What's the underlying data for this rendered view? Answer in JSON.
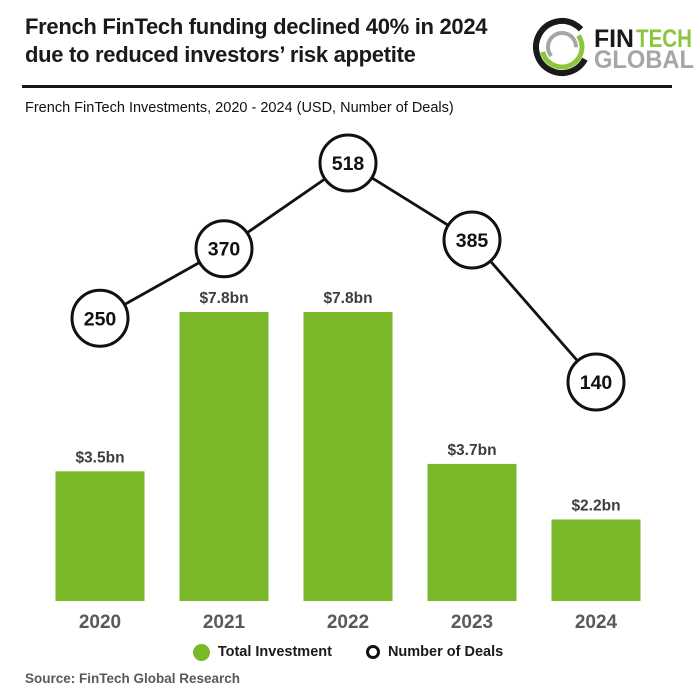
{
  "header": {
    "title_line1": "French FinTech funding declined 40% in 2024",
    "title_line2": "due to reduced investors’ risk appetite"
  },
  "logo": {
    "fin": "FIN",
    "tech": "TECH",
    "global": "GLOBAL"
  },
  "subtitle": "French FinTech Investments, 2020 - 2024 (USD, Number of Deals)",
  "legend": {
    "total_investment": "Total Investment",
    "number_of_deals": "Number of Deals"
  },
  "source": "Source: FinTech Global Research",
  "colors": {
    "bar_green": "#7AB729",
    "logo_green": "#8CC63F",
    "logo_gray": "#A6A6A6",
    "line_black": "#111111",
    "year_gray": "#595959",
    "value_gray": "#3D3D3D"
  },
  "chart_data": {
    "type": "bar",
    "title": "French FinTech Investments, 2020 - 2024 (USD, Number of Deals)",
    "categories": [
      "2020",
      "2021",
      "2022",
      "2023",
      "2024"
    ],
    "series": [
      {
        "name": "Total Investment",
        "role": "bar",
        "unit": "USD bn",
        "values": [
          3.5,
          7.8,
          7.8,
          3.7,
          2.2
        ],
        "labels": [
          "$3.5bn",
          "$7.8bn",
          "$7.8bn",
          "$3.7bn",
          "$2.2bn"
        ]
      },
      {
        "name": "Number of Deals",
        "role": "line-markers",
        "values": [
          250,
          370,
          518,
          385,
          140
        ]
      }
    ],
    "ylim": [
      0,
      7.8
    ],
    "grid": false,
    "legend_position": "bottom"
  }
}
